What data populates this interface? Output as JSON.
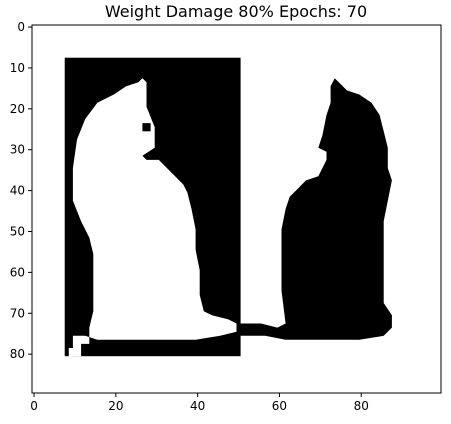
{
  "chart_data": {
    "type": "heatmap",
    "title": "Weight Damage 80% Epochs: 70",
    "xlabel": "",
    "ylabel": "",
    "xlim": [
      -0.5,
      99.5
    ],
    "ylim": [
      89.5,
      -0.5
    ],
    "grid": false,
    "colormap": {
      "0": "#ffffff",
      "1": "#000000"
    },
    "x_ticks": [
      0,
      20,
      40,
      60,
      80
    ],
    "y_ticks": [
      0,
      10,
      20,
      30,
      40,
      50,
      60,
      70,
      80
    ],
    "regions": [
      {
        "name": "left-frame",
        "value": 1,
        "x": [
          8,
          50
        ],
        "y": [
          8,
          80
        ]
      },
      {
        "name": "left-cat",
        "value": 0,
        "outline": [
          [
            9,
            82
          ],
          [
            10,
            81
          ],
          [
            12,
            81
          ],
          [
            12,
            78
          ],
          [
            14,
            78
          ],
          [
            14,
            74
          ],
          [
            15,
            70
          ],
          [
            15,
            62
          ],
          [
            15,
            56
          ],
          [
            14,
            52
          ],
          [
            12,
            48
          ],
          [
            10,
            43
          ],
          [
            10,
            35
          ],
          [
            11,
            28
          ],
          [
            13,
            23
          ],
          [
            16,
            19
          ],
          [
            20,
            17
          ],
          [
            23,
            15
          ],
          [
            26,
            14
          ],
          [
            27,
            13
          ],
          [
            28,
            14
          ],
          [
            28,
            20
          ],
          [
            30,
            25
          ],
          [
            30,
            30
          ],
          [
            27,
            32
          ],
          [
            28,
            33
          ],
          [
            31,
            33
          ],
          [
            33,
            35
          ],
          [
            35,
            37
          ],
          [
            37,
            39
          ],
          [
            38,
            41
          ],
          [
            39,
            45
          ],
          [
            40,
            50
          ],
          [
            40,
            55
          ],
          [
            41,
            60
          ],
          [
            41,
            66
          ],
          [
            42,
            70
          ],
          [
            44,
            71
          ],
          [
            48,
            72
          ],
          [
            50,
            73
          ],
          [
            50,
            75
          ],
          [
            46,
            76
          ],
          [
            40,
            77
          ],
          [
            35,
            77
          ],
          [
            30,
            77
          ],
          [
            25,
            77
          ],
          [
            20,
            77
          ],
          [
            16,
            77
          ],
          [
            13,
            76
          ],
          [
            10,
            76
          ],
          [
            10,
            79
          ],
          [
            9,
            79
          ]
        ]
      },
      {
        "name": "left-cat-eye",
        "value": 1,
        "x": [
          27,
          28
        ],
        "y": [
          24,
          25
        ]
      },
      {
        "name": "right-cat",
        "value": 1,
        "outline": [
          [
            50,
            73
          ],
          [
            56,
            73
          ],
          [
            60,
            74
          ],
          [
            62,
            73
          ],
          [
            61,
            65
          ],
          [
            61,
            58
          ],
          [
            61,
            50
          ],
          [
            62,
            45
          ],
          [
            63,
            42
          ],
          [
            65,
            40
          ],
          [
            67,
            38
          ],
          [
            70,
            37
          ],
          [
            71,
            35
          ],
          [
            72,
            33
          ],
          [
            72,
            31
          ],
          [
            70,
            30
          ],
          [
            71,
            27
          ],
          [
            72,
            22
          ],
          [
            73,
            19
          ],
          [
            73,
            15
          ],
          [
            74,
            13
          ],
          [
            75,
            14
          ],
          [
            77,
            16
          ],
          [
            80,
            17
          ],
          [
            83,
            19
          ],
          [
            85,
            22
          ],
          [
            86,
            26
          ],
          [
            87,
            30
          ],
          [
            87,
            35
          ],
          [
            88,
            38
          ],
          [
            87,
            43
          ],
          [
            86,
            48
          ],
          [
            86,
            55
          ],
          [
            86,
            62
          ],
          [
            86,
            68
          ],
          [
            88,
            71
          ],
          [
            88,
            74
          ],
          [
            86,
            76
          ],
          [
            80,
            77
          ],
          [
            75,
            77
          ],
          [
            70,
            77
          ],
          [
            62,
            77
          ],
          [
            57,
            76
          ],
          [
            52,
            76
          ],
          [
            50,
            76
          ]
        ]
      }
    ]
  }
}
